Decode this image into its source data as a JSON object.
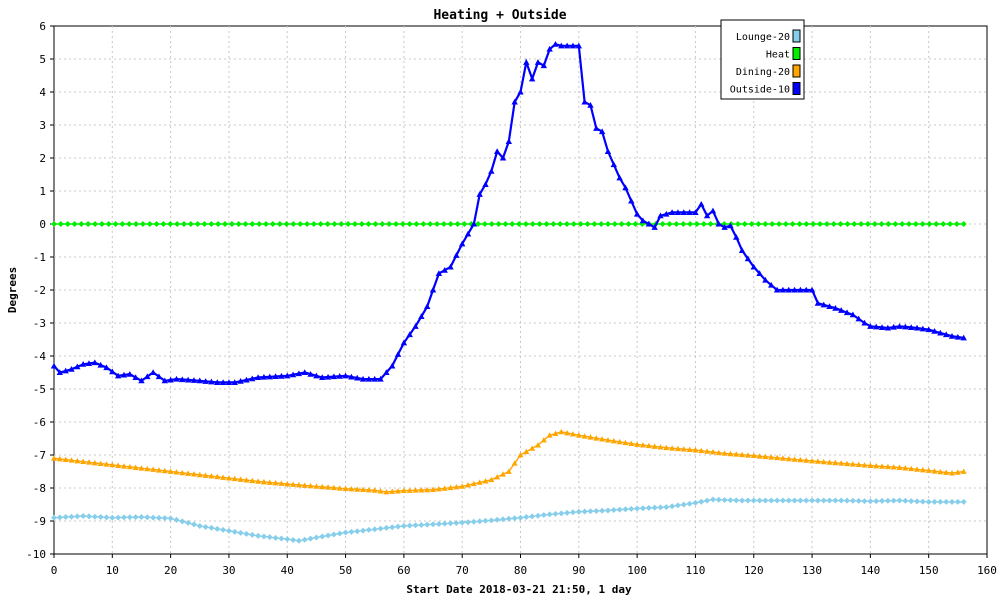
{
  "chart_data": {
    "type": "line",
    "title": "Heating + Outside",
    "xlabel": "Start Date 2018-03-21 21:50, 1 day",
    "ylabel": "Degrees",
    "xlim": [
      0,
      160
    ],
    "ylim": [
      -10,
      6
    ],
    "x_ticks": [
      "0",
      "10",
      "20",
      "30",
      "40",
      "50",
      "60",
      "70",
      "80",
      "90",
      "100",
      "110",
      "120",
      "130",
      "140",
      "150",
      "160"
    ],
    "y_ticks": [
      "6",
      "5",
      "4",
      "3",
      "2",
      "1",
      "0",
      "-1",
      "-2",
      "-3",
      "-4",
      "-5",
      "-6",
      "-7",
      "-8",
      "-9",
      "-10"
    ],
    "grid": true,
    "legend_position": "top-right",
    "series": [
      {
        "name": "Lounge-20",
        "color": "#87ceeb",
        "marker": "diamond",
        "points": [
          [
            0,
            -8.9
          ],
          [
            5,
            -8.85
          ],
          [
            10,
            -8.9
          ],
          [
            15,
            -8.88
          ],
          [
            20,
            -8.92
          ],
          [
            25,
            -9.15
          ],
          [
            30,
            -9.3
          ],
          [
            35,
            -9.45
          ],
          [
            40,
            -9.55
          ],
          [
            42,
            -9.6
          ],
          [
            45,
            -9.5
          ],
          [
            50,
            -9.35
          ],
          [
            55,
            -9.25
          ],
          [
            60,
            -9.15
          ],
          [
            65,
            -9.1
          ],
          [
            70,
            -9.05
          ],
          [
            75,
            -8.98
          ],
          [
            80,
            -8.9
          ],
          [
            85,
            -8.8
          ],
          [
            90,
            -8.72
          ],
          [
            95,
            -8.68
          ],
          [
            100,
            -8.62
          ],
          [
            105,
            -8.58
          ],
          [
            110,
            -8.45
          ],
          [
            113,
            -8.35
          ],
          [
            118,
            -8.38
          ],
          [
            125,
            -8.38
          ],
          [
            130,
            -8.38
          ],
          [
            135,
            -8.38
          ],
          [
            140,
            -8.4
          ],
          [
            145,
            -8.38
          ],
          [
            150,
            -8.42
          ],
          [
            156,
            -8.42
          ]
        ]
      },
      {
        "name": "Heat",
        "color": "#00ee00",
        "marker": "diamond",
        "points": [
          [
            0,
            0
          ],
          [
            156,
            0
          ]
        ]
      },
      {
        "name": "Dining-20",
        "color": "#ffa500",
        "marker": "triangle",
        "points": [
          [
            0,
            -7.1
          ],
          [
            5,
            -7.2
          ],
          [
            10,
            -7.3
          ],
          [
            15,
            -7.4
          ],
          [
            20,
            -7.5
          ],
          [
            25,
            -7.6
          ],
          [
            30,
            -7.7
          ],
          [
            35,
            -7.8
          ],
          [
            40,
            -7.88
          ],
          [
            45,
            -7.95
          ],
          [
            50,
            -8.02
          ],
          [
            55,
            -8.07
          ],
          [
            57,
            -8.12
          ],
          [
            60,
            -8.08
          ],
          [
            65,
            -8.05
          ],
          [
            70,
            -7.95
          ],
          [
            75,
            -7.75
          ],
          [
            78,
            -7.5
          ],
          [
            80,
            -7.0
          ],
          [
            83,
            -6.7
          ],
          [
            85,
            -6.4
          ],
          [
            87,
            -6.3
          ],
          [
            90,
            -6.4
          ],
          [
            95,
            -6.55
          ],
          [
            100,
            -6.68
          ],
          [
            105,
            -6.78
          ],
          [
            110,
            -6.85
          ],
          [
            115,
            -6.95
          ],
          [
            120,
            -7.02
          ],
          [
            125,
            -7.1
          ],
          [
            130,
            -7.18
          ],
          [
            135,
            -7.25
          ],
          [
            140,
            -7.32
          ],
          [
            145,
            -7.38
          ],
          [
            150,
            -7.47
          ],
          [
            154,
            -7.55
          ],
          [
            156,
            -7.5
          ]
        ]
      },
      {
        "name": "Outside-10",
        "color": "#0000ff",
        "marker": "triangle",
        "points": [
          [
            0,
            -4.3
          ],
          [
            1,
            -4.5
          ],
          [
            3,
            -4.4
          ],
          [
            5,
            -4.25
          ],
          [
            7,
            -4.2
          ],
          [
            9,
            -4.35
          ],
          [
            11,
            -4.6
          ],
          [
            13,
            -4.55
          ],
          [
            15,
            -4.75
          ],
          [
            17,
            -4.5
          ],
          [
            19,
            -4.75
          ],
          [
            21,
            -4.7
          ],
          [
            25,
            -4.75
          ],
          [
            28,
            -4.8
          ],
          [
            31,
            -4.8
          ],
          [
            35,
            -4.65
          ],
          [
            40,
            -4.6
          ],
          [
            43,
            -4.5
          ],
          [
            46,
            -4.65
          ],
          [
            50,
            -4.6
          ],
          [
            53,
            -4.7
          ],
          [
            56,
            -4.7
          ],
          [
            58,
            -4.3
          ],
          [
            60,
            -3.6
          ],
          [
            62,
            -3.1
          ],
          [
            64,
            -2.5
          ],
          [
            66,
            -1.5
          ],
          [
            68,
            -1.3
          ],
          [
            70,
            -0.6
          ],
          [
            71,
            -0.3
          ],
          [
            72,
            0.0
          ],
          [
            73,
            0.9
          ],
          [
            74,
            1.2
          ],
          [
            75,
            1.6
          ],
          [
            76,
            2.2
          ],
          [
            77,
            2.0
          ],
          [
            78,
            2.5
          ],
          [
            79,
            3.7
          ],
          [
            80,
            4.0
          ],
          [
            81,
            4.9
          ],
          [
            82,
            4.4
          ],
          [
            83,
            4.9
          ],
          [
            84,
            4.8
          ],
          [
            85,
            5.3
          ],
          [
            86,
            5.45
          ],
          [
            87,
            5.4
          ],
          [
            90,
            5.4
          ],
          [
            91,
            3.7
          ],
          [
            92,
            3.6
          ],
          [
            93,
            2.9
          ],
          [
            94,
            2.8
          ],
          [
            95,
            2.2
          ],
          [
            96,
            1.8
          ],
          [
            97,
            1.4
          ],
          [
            98,
            1.1
          ],
          [
            99,
            0.7
          ],
          [
            100,
            0.3
          ],
          [
            101,
            0.1
          ],
          [
            102,
            0.0
          ],
          [
            103,
            -0.1
          ],
          [
            104,
            0.25
          ],
          [
            106,
            0.35
          ],
          [
            110,
            0.35
          ],
          [
            111,
            0.6
          ],
          [
            112,
            0.25
          ],
          [
            113,
            0.4
          ],
          [
            114,
            0.0
          ],
          [
            115,
            -0.1
          ],
          [
            116,
            -0.05
          ],
          [
            117,
            -0.4
          ],
          [
            118,
            -0.8
          ],
          [
            120,
            -1.3
          ],
          [
            122,
            -1.7
          ],
          [
            124,
            -2.0
          ],
          [
            130,
            -2.0
          ],
          [
            131,
            -2.4
          ],
          [
            134,
            -2.55
          ],
          [
            137,
            -2.75
          ],
          [
            139,
            -3.0
          ],
          [
            140,
            -3.1
          ],
          [
            143,
            -3.15
          ],
          [
            145,
            -3.1
          ],
          [
            148,
            -3.15
          ],
          [
            150,
            -3.2
          ],
          [
            152,
            -3.3
          ],
          [
            154,
            -3.4
          ],
          [
            156,
            -3.45
          ]
        ]
      }
    ]
  }
}
